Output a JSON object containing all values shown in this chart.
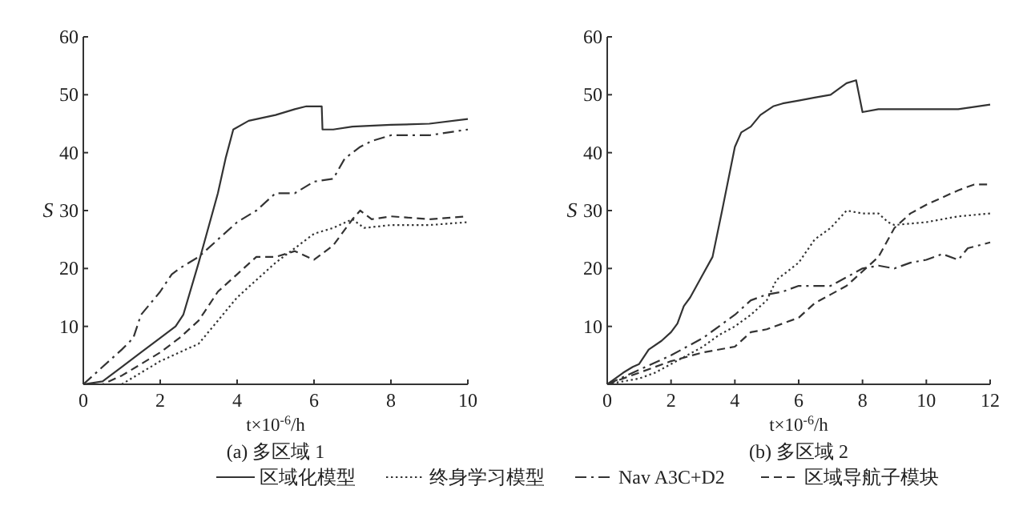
{
  "chart_data": [
    {
      "type": "line",
      "title": "(a) 多区域 1",
      "xlabel": "t×10$^{-6}$/h",
      "ylabel": "S",
      "xlim": [
        0,
        10
      ],
      "ylim": [
        0,
        60
      ],
      "xticks": [
        0,
        2,
        4,
        6,
        8,
        10
      ],
      "yticks": [
        {
          "value": 0,
          "label": null
        },
        10,
        20,
        30,
        40,
        50,
        60
      ],
      "legend": "bottom",
      "grid": false,
      "series": [
        {
          "name": "区域化模型",
          "color": "#333333",
          "line_style": "solid",
          "x": [
            0,
            0.5,
            1,
            1.5,
            2,
            2.4,
            2.6,
            3,
            3.5,
            3.7,
            3.9,
            4.3,
            5,
            5.5,
            5.8,
            6.2,
            6.22,
            6.5,
            7,
            8,
            9,
            10
          ],
          "values": [
            0,
            0.5,
            3,
            5.5,
            8,
            10,
            12,
            21,
            33,
            39,
            44,
            45.5,
            46.5,
            47.5,
            48,
            48,
            44,
            44,
            44.5,
            44.8,
            45,
            45.8
          ]
        },
        {
          "name": "终身学习模型",
          "color": "#333333",
          "line_style": "dotted",
          "x": [
            0,
            1,
            1.5,
            2,
            2.5,
            3,
            3.5,
            4,
            4.5,
            5,
            5.5,
            6,
            6.5,
            7,
            7.3,
            8,
            9,
            10
          ],
          "values": [
            0,
            0,
            2,
            4,
            5.5,
            7,
            11,
            15,
            18,
            21,
            23.5,
            26,
            27,
            28.5,
            27,
            27.5,
            27.5,
            28
          ]
        },
        {
          "name": "Nav A3C+D2",
          "color": "#333333",
          "line_style": "dashdot",
          "x": [
            0,
            0.5,
            1,
            1.3,
            1.5,
            2,
            2.3,
            2.5,
            3,
            3.5,
            4,
            4.5,
            5,
            5.5,
            6,
            6.5,
            6.8,
            7.2,
            7.5,
            8,
            9,
            10
          ],
          "values": [
            0,
            3,
            6,
            8,
            12,
            16,
            19,
            20,
            22,
            25,
            28,
            30,
            33,
            33,
            35,
            35.5,
            39,
            41,
            42,
            43,
            43,
            44
          ]
        },
        {
          "name": "区域导航子模块",
          "color": "#333333",
          "line_style": "dashed",
          "x": [
            0,
            0.5,
            1,
            1.5,
            2,
            2.5,
            3,
            3.5,
            4,
            4.5,
            5,
            5.5,
            6,
            6.5,
            7,
            7.2,
            7.5,
            8,
            9,
            10
          ],
          "values": [
            0,
            0,
            1.5,
            3.5,
            5.5,
            8,
            11,
            16,
            19,
            22,
            22,
            23,
            21.5,
            24,
            28.5,
            30,
            28.5,
            29,
            28.5,
            29
          ]
        }
      ]
    },
    {
      "type": "line",
      "title": "(b) 多区域 2",
      "xlabel": "t×10$^{-6}$/h",
      "ylabel": "S",
      "xlim": [
        0,
        12
      ],
      "ylim": [
        0,
        60
      ],
      "xticks": [
        0,
        2,
        4,
        6,
        8,
        10,
        12
      ],
      "yticks": [
        {
          "value": 0,
          "label": null
        },
        10,
        20,
        30,
        40,
        50,
        60
      ],
      "grid": false,
      "series": [
        {
          "color": "#333333",
          "line_style": "solid",
          "x": [
            0,
            0.5,
            0.8,
            1,
            1.3,
            1.7,
            2,
            2.2,
            2.4,
            2.6,
            3,
            3.3,
            3.6,
            4,
            4.2,
            4.5,
            4.8,
            5.2,
            5.5,
            6,
            6.5,
            7,
            7.5,
            7.8,
            8,
            8.5,
            9,
            10,
            11,
            12
          ],
          "values": [
            0,
            2,
            3,
            3.5,
            6,
            7.5,
            9,
            10.5,
            13.5,
            15,
            19,
            22,
            30,
            41,
            43.5,
            44.5,
            46.5,
            48,
            48.5,
            49,
            49.5,
            50,
            52,
            52.5,
            47,
            47.5,
            47.5,
            47.5,
            47.5,
            48.3
          ]
        },
        {
          "color": "#333333",
          "line_style": "dotted",
          "x": [
            0,
            1,
            1.5,
            2,
            2.5,
            3,
            3.5,
            4,
            4.5,
            5,
            5.3,
            6,
            6.5,
            7,
            7.5,
            8,
            8.5,
            8.8,
            9,
            10,
            11,
            12
          ],
          "values": [
            0,
            1,
            2,
            3.5,
            5,
            6.5,
            8.5,
            10,
            12,
            14.5,
            18,
            21,
            25,
            27,
            30,
            29.5,
            29.5,
            28,
            27.5,
            28,
            29,
            29.5
          ]
        },
        {
          "color": "#333333",
          "line_style": "dashdot",
          "x": [
            0,
            1,
            2,
            3,
            4,
            4.5,
            5,
            5.5,
            6,
            6.5,
            7,
            7.5,
            8,
            8.5,
            9,
            9.5,
            10,
            10.5,
            11,
            11.3,
            12
          ],
          "values": [
            0,
            2.5,
            5,
            8,
            12,
            14.5,
            15.5,
            16,
            17,
            17,
            17,
            18.5,
            20,
            20.5,
            20,
            21,
            21.5,
            22.5,
            21.5,
            23.5,
            24.5
          ]
        },
        {
          "color": "#333333",
          "line_style": "dashed",
          "x": [
            0,
            1,
            2,
            3,
            4,
            4.5,
            5,
            5.5,
            6,
            6.5,
            7,
            7.5,
            8,
            8.5,
            9,
            9.5,
            10,
            11,
            11.5,
            12
          ],
          "values": [
            0,
            2,
            4,
            5.5,
            6.5,
            9,
            9.5,
            10.5,
            11.5,
            14,
            15.5,
            17,
            19.5,
            22,
            27,
            29.5,
            31,
            33.5,
            34.5,
            34.5
          ]
        }
      ]
    }
  ]
}
